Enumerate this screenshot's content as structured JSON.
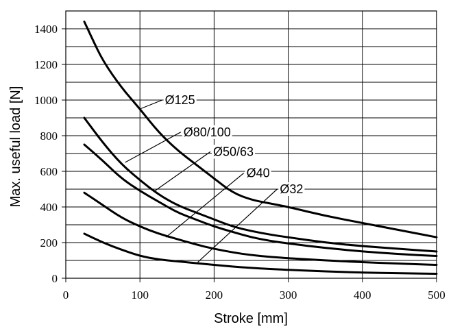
{
  "chart_data": {
    "type": "line",
    "xlabel": "Stroke [mm]",
    "ylabel": "Max. useful load [N]",
    "xlim": [
      0,
      500
    ],
    "ylim": [
      0,
      1500
    ],
    "grid": true,
    "x_ticks": [
      0,
      100,
      200,
      300,
      400,
      500
    ],
    "y_ticks": [
      0,
      200,
      400,
      600,
      800,
      1000,
      1200,
      1400
    ],
    "y_grid_step": 100,
    "series": [
      {
        "name": "Ø125",
        "label_target": [
          100,
          950
        ],
        "label_anchor": [
          130,
          1000
        ],
        "x": [
          25,
          35,
          50,
          75,
          100,
          125,
          150,
          175,
          200,
          225,
          250,
          275,
          300,
          350,
          400,
          450,
          500
        ],
        "y": [
          1440,
          1350,
          1220,
          1070,
          950,
          820,
          720,
          640,
          560,
          480,
          440,
          420,
          400,
          350,
          310,
          270,
          230
        ]
      },
      {
        "name": "Ø80/100",
        "label_target": [
          80,
          650
        ],
        "label_anchor": [
          155,
          820
        ],
        "x": [
          25,
          50,
          75,
          100,
          125,
          150,
          175,
          200,
          225,
          250,
          275,
          300,
          350,
          400,
          450,
          500
        ],
        "y": [
          900,
          760,
          640,
          550,
          470,
          410,
          370,
          330,
          290,
          265,
          245,
          230,
          200,
          180,
          165,
          150
        ]
      },
      {
        "name": "Ø50/63",
        "label_target": [
          120,
          490
        ],
        "label_anchor": [
          195,
          710
        ],
        "x": [
          25,
          50,
          75,
          100,
          125,
          150,
          175,
          200,
          225,
          250,
          275,
          300,
          350,
          400,
          450,
          500
        ],
        "y": [
          750,
          660,
          560,
          490,
          430,
          370,
          330,
          290,
          260,
          230,
          210,
          195,
          170,
          150,
          135,
          125
        ]
      },
      {
        "name": "Ø40",
        "label_target": [
          135,
          230
        ],
        "label_anchor": [
          240,
          590
        ],
        "x": [
          25,
          50,
          75,
          100,
          125,
          150,
          175,
          200,
          225,
          250,
          275,
          300,
          350,
          400,
          450,
          500
        ],
        "y": [
          480,
          410,
          340,
          290,
          250,
          220,
          190,
          165,
          145,
          130,
          120,
          112,
          100,
          90,
          82,
          75
        ]
      },
      {
        "name": "Ø32",
        "label_target": [
          178,
          90
        ],
        "label_anchor": [
          285,
          500
        ],
        "x": [
          25,
          50,
          75,
          100,
          125,
          150,
          175,
          200,
          225,
          250,
          275,
          300,
          350,
          400,
          450,
          500
        ],
        "y": [
          250,
          200,
          160,
          125,
          105,
          95,
          85,
          75,
          65,
          58,
          52,
          47,
          38,
          32,
          28,
          25
        ]
      }
    ]
  }
}
